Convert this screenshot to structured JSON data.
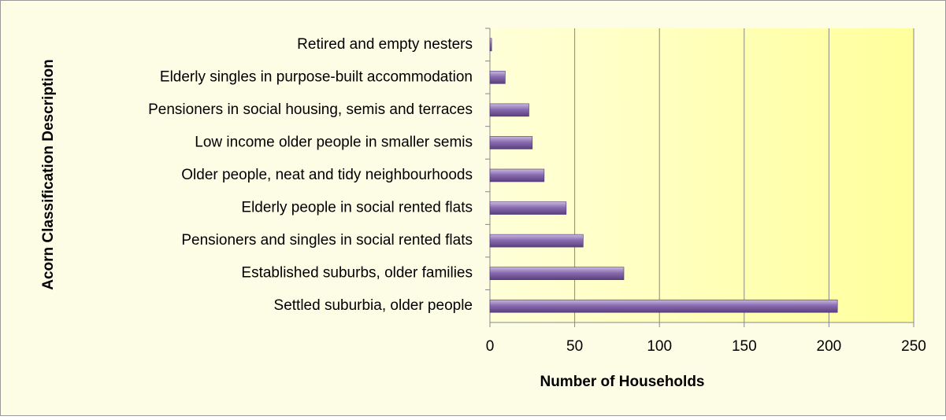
{
  "chart_data": {
    "type": "bar",
    "orientation": "horizontal",
    "categories": [
      "Retired and empty nesters",
      "Elderly singles in purpose-built accommodation",
      "Pensioners in social housing, semis and terraces",
      "Low income older people in smaller semis",
      "Older people, neat and tidy neighbourhoods",
      "Elderly people in social rented flats",
      "Pensioners and singles in social rented flats",
      "Established suburbs, older families",
      "Settled suburbia, older people"
    ],
    "values": [
      1,
      9,
      23,
      25,
      32,
      45,
      55,
      79,
      205
    ],
    "color": "#8064a2",
    "xlabel": "Number of Households",
    "ylabel": "Acorn Classification Description",
    "xlim": [
      0,
      250
    ],
    "xticks": [
      0,
      50,
      100,
      150,
      200,
      250
    ],
    "grid": true
  }
}
